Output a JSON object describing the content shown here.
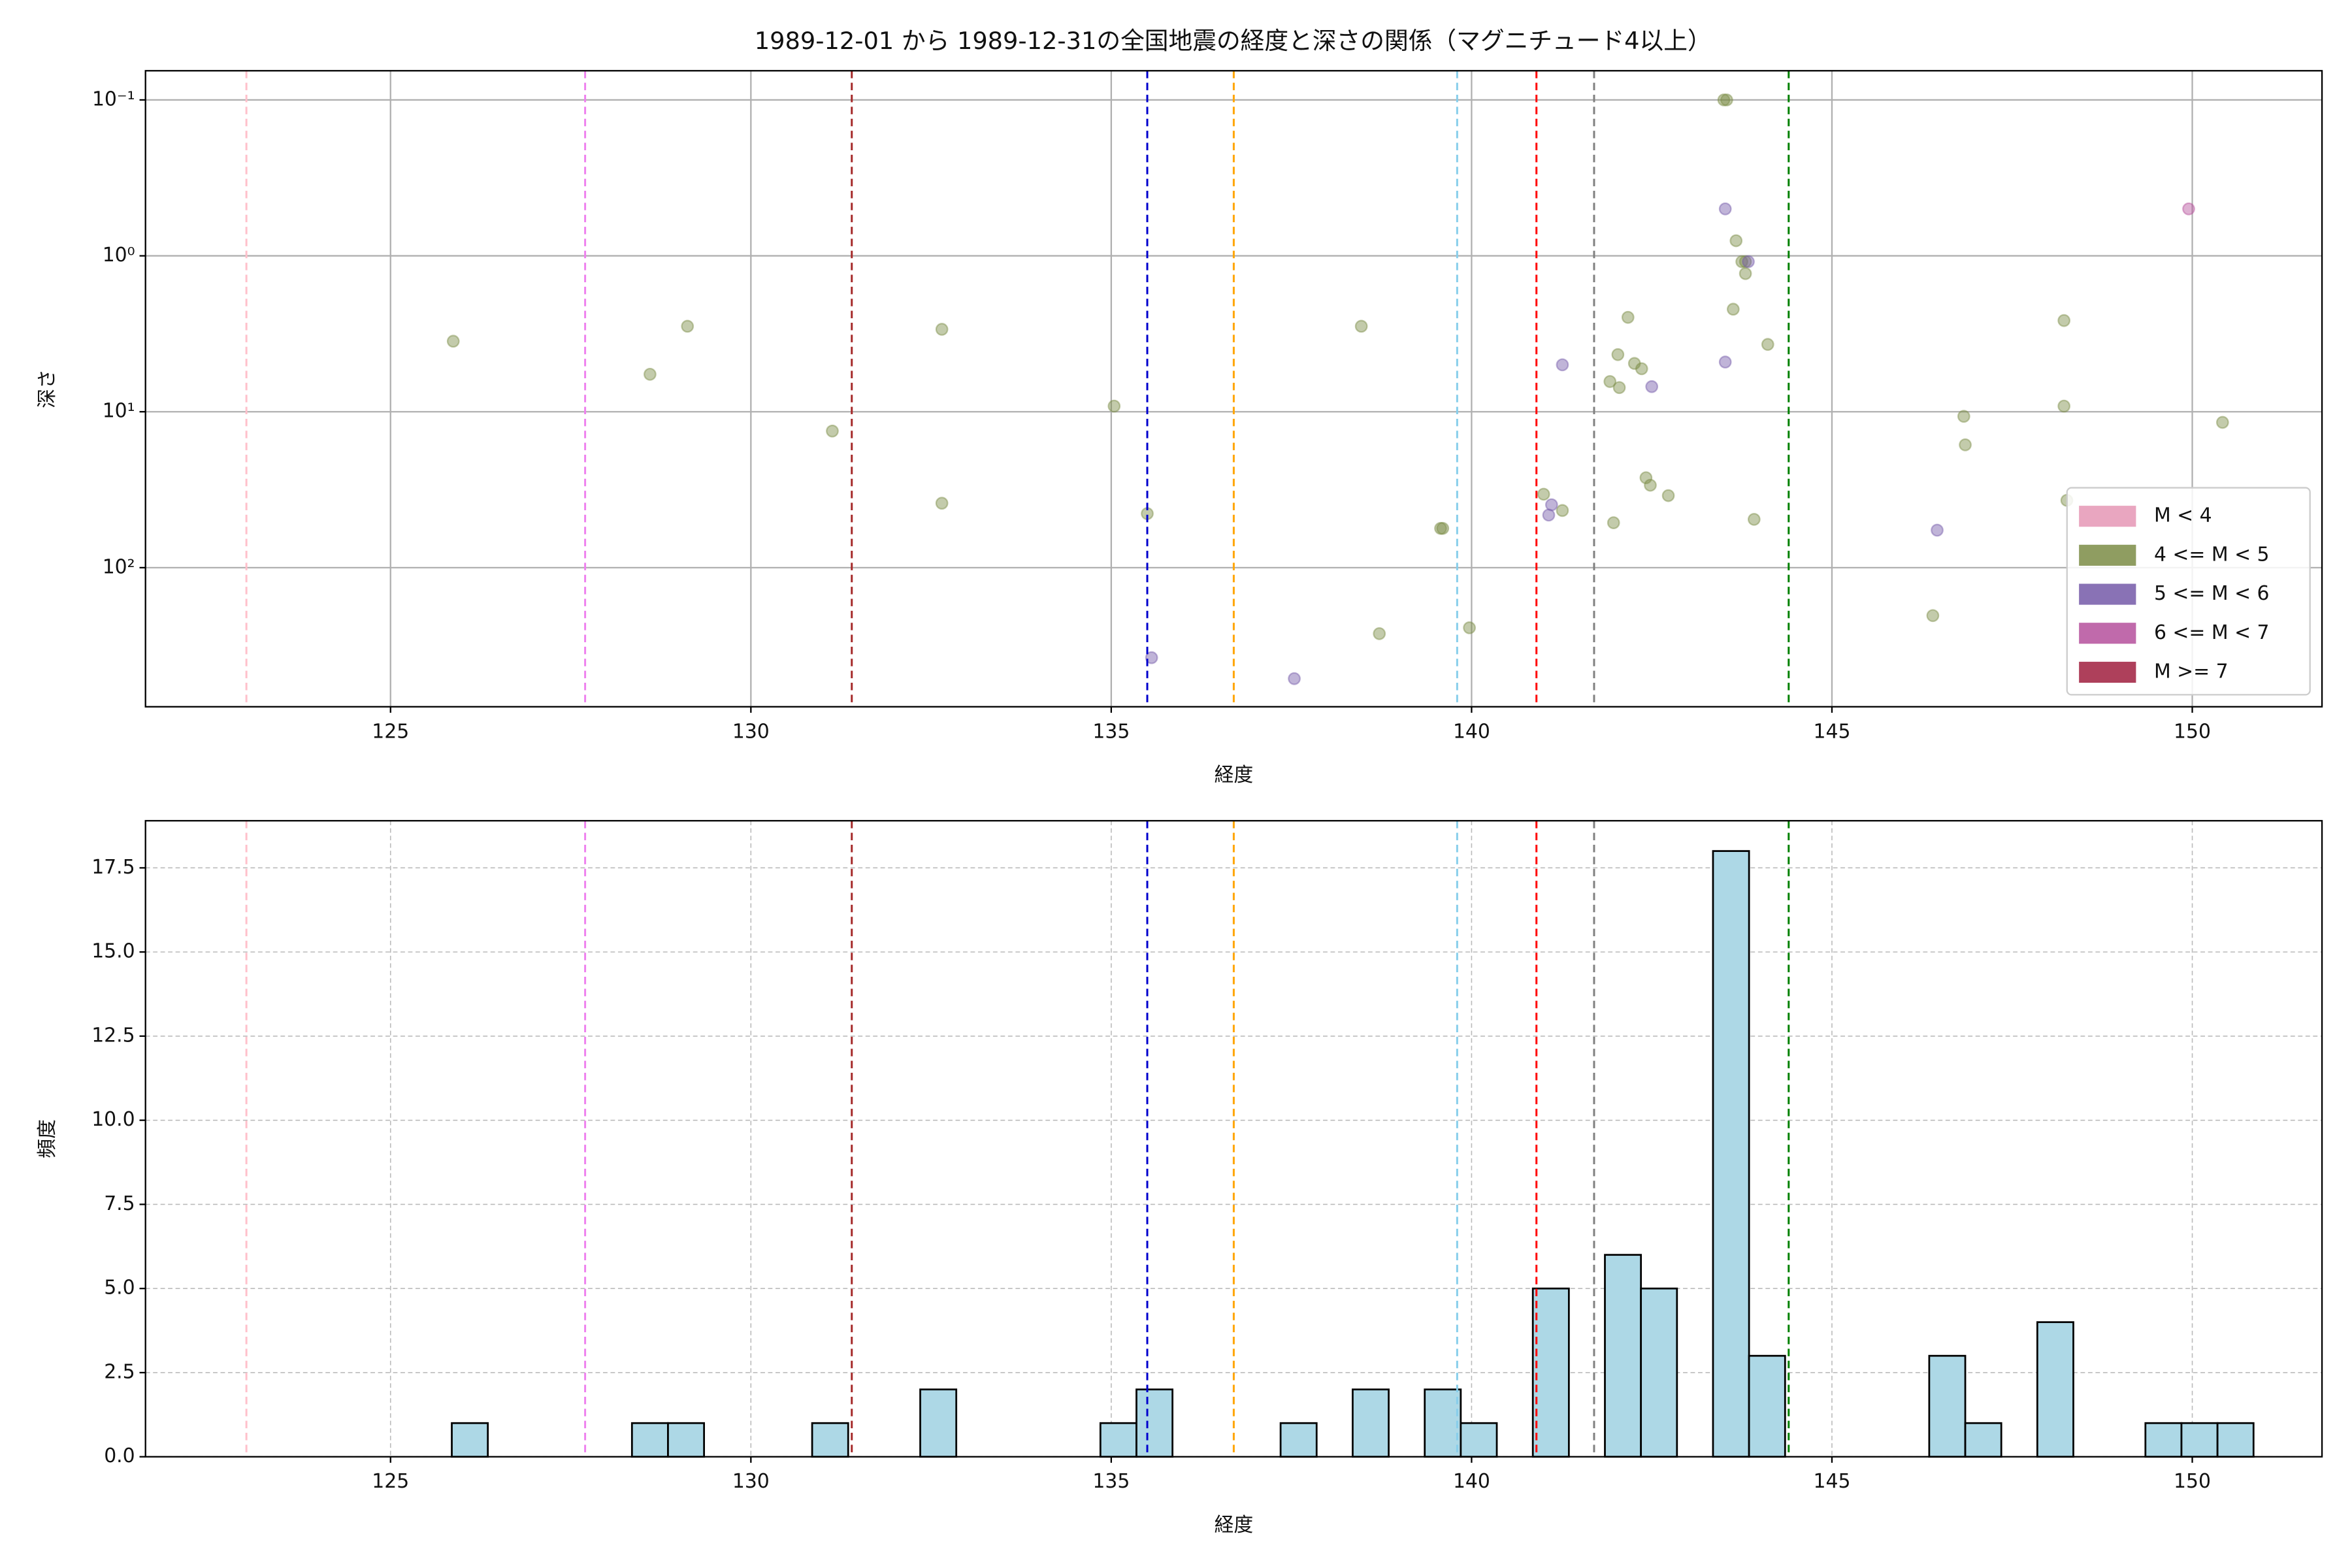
{
  "chart_data": [
    {
      "type": "scatter",
      "title": "1989-12-01 から 1989-12-31の全国地震の経度と深さの関係（マグニチュード4以上）",
      "x_label": "経度",
      "y_label": "深さ",
      "xlim": [
        121.6,
        151.8
      ],
      "xticks": [
        125,
        130,
        135,
        140,
        145,
        150
      ],
      "ylim": [
        0.065,
        780
      ],
      "y_log": true,
      "y_inverted": true,
      "yticks": [
        {
          "value": 0.1,
          "label": "10⁻¹"
        },
        {
          "value": 1,
          "label": "10⁰"
        },
        {
          "value": 10,
          "label": "10¹"
        },
        {
          "value": 100,
          "label": "10²"
        }
      ],
      "grid": true,
      "grid_style": "solid",
      "legend": "lower right",
      "alpha": 0.45,
      "vlines": [
        {
          "x": 123.0,
          "color": "pink"
        },
        {
          "x": 127.7,
          "color": "violet"
        },
        {
          "x": 131.4,
          "color": "brown"
        },
        {
          "x": 135.5,
          "color": "mediumblue"
        },
        {
          "x": 136.7,
          "color": "orange"
        },
        {
          "x": 139.8,
          "color": "skyblue"
        },
        {
          "x": 140.9,
          "color": "red"
        },
        {
          "x": 141.7,
          "color": "gray"
        },
        {
          "x": 144.4,
          "color": "green"
        }
      ],
      "series": [
        {
          "name": "M < 4",
          "color": "#e597b5",
          "x": [],
          "values": []
        },
        {
          "name": "4 <= M < 5",
          "color": "#7b8c45",
          "x": [
            125.87,
            128.6,
            129.12,
            131.13,
            132.65,
            132.65,
            135.04,
            135.5,
            138.47,
            138.72,
            139.57,
            139.6,
            139.97,
            141.0,
            141.26,
            141.92,
            141.97,
            142.03,
            142.05,
            142.17,
            142.26,
            142.36,
            142.42,
            142.48,
            142.73,
            143.5,
            143.54,
            143.63,
            143.67,
            143.75,
            143.8,
            143.8,
            143.92,
            144.11,
            146.4,
            146.83,
            146.85,
            148.22,
            148.22,
            148.26,
            150.42
          ],
          "values": [
            3.53,
            5.75,
            2.83,
            13.3,
            2.96,
            38.6,
            9.2,
            45,
            2.83,
            265,
            56,
            56,
            243,
            33.8,
            43,
            6.4,
            51.5,
            4.3,
            7.0,
            2.48,
            4.9,
            5.3,
            26.5,
            29.6,
            34.5,
            0.1,
            0.1,
            2.2,
            0.8,
            1.09,
            1.3,
            1.09,
            49,
            3.7,
            203,
            10.7,
            16.3,
            2.6,
            9.2,
            37,
            11.7
          ]
        },
        {
          "name": "5 <= M < 6",
          "color": "#7459a8",
          "x": [
            135.56,
            137.54,
            141.07,
            141.11,
            141.26,
            142.5,
            143.52,
            143.52,
            143.84,
            146.46
          ],
          "values": [
            378,
            515,
            46,
            39.5,
            5.0,
            6.9,
            0.5,
            4.8,
            1.09,
            57.5
          ]
        },
        {
          "name": "6 <= M < 7",
          "color": "#b5509c",
          "x": [
            149.95
          ],
          "values": [
            0.5
          ]
        },
        {
          "name": "M >= 7",
          "color": "#a01e3e",
          "x": [],
          "values": []
        }
      ]
    },
    {
      "type": "histogram",
      "x_label": "経度",
      "y_label": "頻度",
      "xlim": [
        121.6,
        151.8
      ],
      "xticks": [
        125,
        130,
        135,
        140,
        145,
        150
      ],
      "ylim": [
        0,
        18.9
      ],
      "yticks": [
        {
          "value": 0,
          "label": "0.0"
        },
        2.5,
        {
          "value": 5,
          "label": "5.0"
        },
        7.5,
        {
          "value": 10,
          "label": "10.0"
        },
        12.5,
        {
          "value": 15,
          "label": "15.0"
        },
        17.5
      ],
      "grid": true,
      "grid_style": "dashed",
      "color": "lightblue",
      "edgecolor": "#000000",
      "vlines": [
        {
          "x": 123.0,
          "color": "pink"
        },
        {
          "x": 127.7,
          "color": "violet"
        },
        {
          "x": 131.4,
          "color": "brown"
        },
        {
          "x": 135.5,
          "color": "mediumblue"
        },
        {
          "x": 136.7,
          "color": "orange"
        },
        {
          "x": 139.8,
          "color": "skyblue"
        },
        {
          "x": 140.9,
          "color": "red"
        },
        {
          "x": 141.7,
          "color": "gray"
        },
        {
          "x": 144.4,
          "color": "green"
        }
      ],
      "bins": [
        125.85,
        126.35,
        126.85,
        127.35,
        127.85,
        128.35,
        128.85,
        129.35,
        129.85,
        130.35,
        130.85,
        131.35,
        131.85,
        132.35,
        132.85,
        133.35,
        133.85,
        134.35,
        134.85,
        135.35,
        135.85,
        136.35,
        136.85,
        137.35,
        137.85,
        138.35,
        138.85,
        139.35,
        139.85,
        140.35,
        140.85,
        141.35,
        141.85,
        142.35,
        142.85,
        143.35,
        143.85,
        144.35,
        144.85,
        145.35,
        145.85,
        146.35,
        146.85,
        147.35,
        147.85,
        148.35,
        148.85,
        149.35,
        149.85,
        150.35,
        150.85
      ],
      "values": [
        1,
        0,
        0,
        0,
        0,
        1,
        1,
        0,
        0,
        0,
        1,
        0,
        0,
        2,
        0,
        0,
        0,
        0,
        1,
        2,
        0,
        0,
        0,
        1,
        0,
        2,
        0,
        2,
        1,
        0,
        5,
        0,
        6,
        5,
        0,
        18,
        3,
        0,
        0,
        0,
        0,
        3,
        1,
        0,
        4,
        0,
        0,
        1,
        1,
        1
      ]
    }
  ]
}
